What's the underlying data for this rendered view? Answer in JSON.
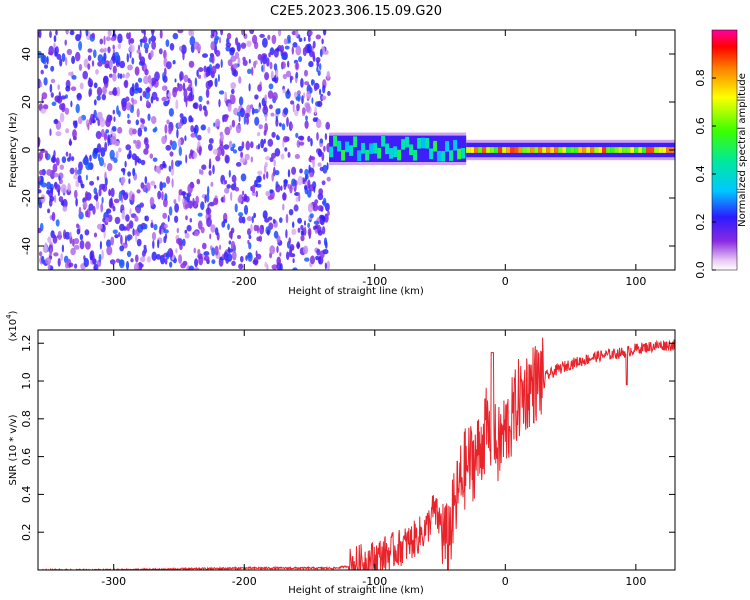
{
  "title": "C2E5.2023.306.15.09.G20",
  "top_panel": {
    "ylabel": "Frequency (Hz)",
    "xlabel": "Height of straight line (km)",
    "colorbar_label": "Normalized spectral amplitude",
    "colorbar_ticks": [
      "0.0",
      "0.2",
      "0.4",
      "0.6",
      "0.8"
    ]
  },
  "bottom_panel": {
    "ylabel": "SNR (10 * v/v)",
    "multiplier": "(x10",
    "multiplier_exp": "4",
    "multiplier_close": ")",
    "xlabel": "Height of straight line (km)"
  },
  "colors": {
    "snr_line": "#e8232a",
    "heatmap_low": "#8a2be2",
    "heatmap_high": "#ff0000"
  },
  "chart_data": [
    {
      "type": "heatmap",
      "title": "C2E5.2023.306.15.09.G20",
      "xlabel": "Height of straight line (km)",
      "ylabel": "Frequency (Hz)",
      "xlim": [
        -358,
        130
      ],
      "ylim": [
        -50,
        50
      ],
      "x_ticks": [
        -300,
        -200,
        -100,
        0,
        100
      ],
      "y_ticks": [
        -40,
        -20,
        0,
        20,
        40
      ],
      "colorbar": {
        "label": "Normalized spectral amplitude",
        "range": [
          0,
          1
        ],
        "ticks": [
          0.0,
          0.2,
          0.4,
          0.6,
          0.8
        ]
      },
      "regions": [
        {
          "x_range": [
            -358,
            -135
          ],
          "y_range": [
            -50,
            50
          ],
          "amplitude": 0.1
        },
        {
          "x_range": [
            -135,
            -30
          ],
          "y_range": [
            -5,
            6
          ],
          "amplitude": 0.45
        },
        {
          "x_range": [
            -30,
            130
          ],
          "y_range": [
            -3,
            3
          ],
          "amplitude": 0.75
        }
      ]
    },
    {
      "type": "line",
      "xlabel": "Height of straight line (km)",
      "ylabel": "SNR (10 * v/v)",
      "y_multiplier": "x10^4",
      "xlim": [
        -358,
        130
      ],
      "ylim": [
        0,
        1.27
      ],
      "x_ticks": [
        -300,
        -200,
        -100,
        0,
        100
      ],
      "y_ticks": [
        0.2,
        0.4,
        0.6,
        0.8,
        1.0,
        1.2
      ],
      "series": [
        {
          "x": [
            -358,
            -300,
            -200,
            -150,
            -130,
            -120,
            -110,
            -100,
            -90,
            -80,
            -70,
            -60,
            -55,
            -50,
            -45,
            -40,
            -35,
            -30,
            -25,
            -20,
            -15,
            -10,
            -5,
            0,
            5,
            10,
            20,
            30,
            40,
            50,
            60,
            70,
            80,
            90,
            100,
            110,
            120,
            130
          ],
          "values": [
            0.0,
            0.0,
            0.01,
            0.01,
            0.01,
            0.02,
            0.04,
            0.06,
            0.09,
            0.12,
            0.16,
            0.22,
            0.32,
            0.25,
            0.14,
            0.28,
            0.45,
            0.55,
            0.58,
            0.62,
            0.75,
            0.68,
            0.65,
            0.74,
            0.8,
            0.9,
            0.98,
            1.02,
            1.06,
            1.09,
            1.11,
            1.13,
            1.14,
            1.15,
            1.17,
            1.18,
            1.19,
            1.19
          ]
        }
      ]
    }
  ]
}
